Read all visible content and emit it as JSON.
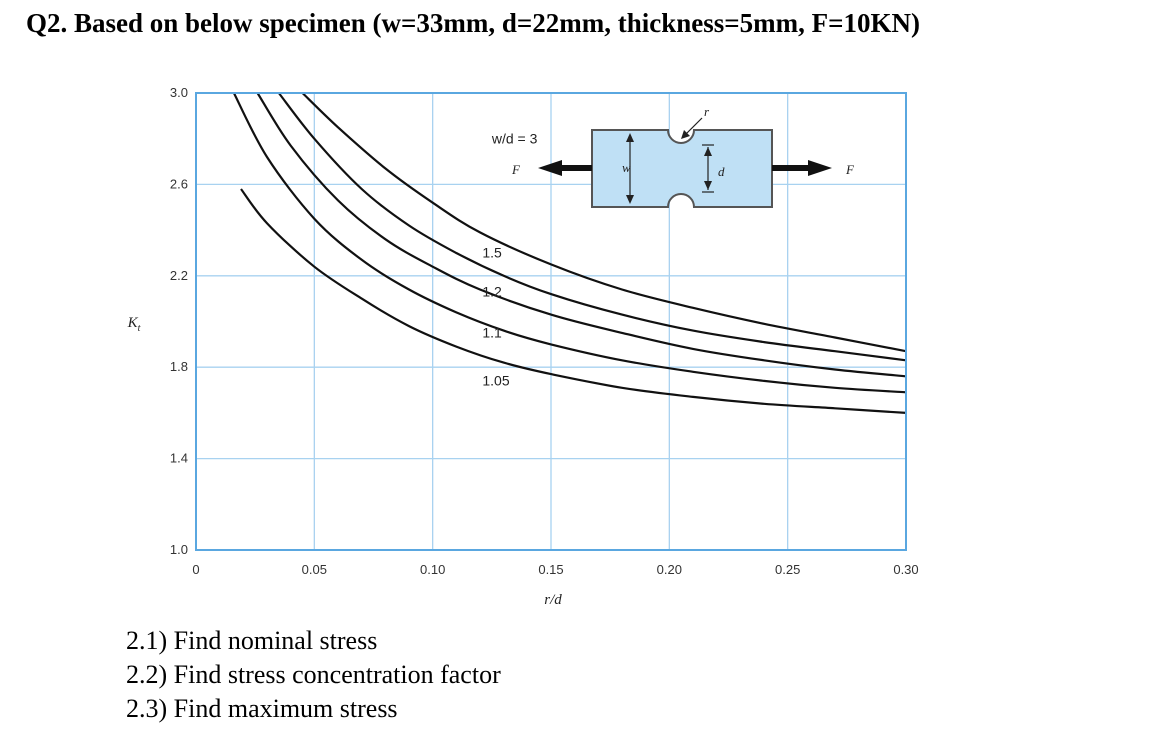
{
  "question": {
    "title": "Q2. Based on below specimen (w=33mm, d=22mm, thickness=5mm, F=10KN)",
    "tasks": [
      "2.1) Find nominal stress",
      "2.2) Find stress concentration factor",
      "2.3) Find maximum stress"
    ]
  },
  "diagram": {
    "force_left": "F",
    "force_right": "F",
    "width_label": "w",
    "depth_label": "d",
    "radius_label": "r",
    "fill_color": "#bfe0f5",
    "stroke_color": "#555555"
  },
  "chart_data": {
    "type": "line",
    "xlabel": "r/d",
    "ylabel": "Kt",
    "xlim": [
      0,
      0.3
    ],
    "ylim": [
      1.0,
      3.0
    ],
    "x_ticks": [
      "0",
      "0.05",
      "0.10",
      "0.15",
      "0.20",
      "0.25",
      "0.30"
    ],
    "y_ticks": [
      "1.0",
      "1.4",
      "1.8",
      "2.2",
      "2.6",
      "3.0"
    ],
    "grid": true,
    "grid_color": "#a8d2f0",
    "frame_color": "#5aa7e0",
    "line_color": "#111111",
    "series": [
      {
        "name": "w/d = 3",
        "label_x": 0.125,
        "label_y": 2.78,
        "points": [
          [
            0.045,
            3.0
          ],
          [
            0.06,
            2.85
          ],
          [
            0.08,
            2.67
          ],
          [
            0.1,
            2.52
          ],
          [
            0.12,
            2.39
          ],
          [
            0.15,
            2.25
          ],
          [
            0.18,
            2.14
          ],
          [
            0.21,
            2.06
          ],
          [
            0.24,
            1.99
          ],
          [
            0.27,
            1.93
          ],
          [
            0.3,
            1.87
          ]
        ]
      },
      {
        "name": "1.5",
        "label_x": 0.121,
        "label_y": 2.28,
        "points": [
          [
            0.035,
            3.0
          ],
          [
            0.05,
            2.8
          ],
          [
            0.07,
            2.58
          ],
          [
            0.09,
            2.42
          ],
          [
            0.11,
            2.3
          ],
          [
            0.13,
            2.2
          ],
          [
            0.15,
            2.12
          ],
          [
            0.18,
            2.03
          ],
          [
            0.21,
            1.96
          ],
          [
            0.24,
            1.91
          ],
          [
            0.27,
            1.87
          ],
          [
            0.3,
            1.83
          ]
        ]
      },
      {
        "name": "1.2",
        "label_x": 0.121,
        "label_y": 2.11,
        "points": [
          [
            0.026,
            3.0
          ],
          [
            0.04,
            2.77
          ],
          [
            0.06,
            2.53
          ],
          [
            0.08,
            2.36
          ],
          [
            0.1,
            2.24
          ],
          [
            0.12,
            2.14
          ],
          [
            0.15,
            2.03
          ],
          [
            0.18,
            1.95
          ],
          [
            0.21,
            1.88
          ],
          [
            0.24,
            1.83
          ],
          [
            0.27,
            1.79
          ],
          [
            0.3,
            1.76
          ]
        ]
      },
      {
        "name": "1.1",
        "label_x": 0.121,
        "label_y": 1.93,
        "points": [
          [
            0.016,
            3.0
          ],
          [
            0.03,
            2.72
          ],
          [
            0.05,
            2.45
          ],
          [
            0.07,
            2.27
          ],
          [
            0.09,
            2.14
          ],
          [
            0.11,
            2.04
          ],
          [
            0.13,
            1.96
          ],
          [
            0.15,
            1.9
          ],
          [
            0.18,
            1.83
          ],
          [
            0.21,
            1.78
          ],
          [
            0.24,
            1.74
          ],
          [
            0.27,
            1.71
          ],
          [
            0.3,
            1.69
          ]
        ]
      },
      {
        "name": "1.05",
        "label_x": 0.121,
        "label_y": 1.72,
        "points": [
          [
            0.019,
            2.58
          ],
          [
            0.03,
            2.43
          ],
          [
            0.05,
            2.24
          ],
          [
            0.07,
            2.1
          ],
          [
            0.09,
            1.98
          ],
          [
            0.11,
            1.89
          ],
          [
            0.13,
            1.82
          ],
          [
            0.15,
            1.77
          ],
          [
            0.18,
            1.71
          ],
          [
            0.21,
            1.67
          ],
          [
            0.24,
            1.64
          ],
          [
            0.27,
            1.62
          ],
          [
            0.3,
            1.6
          ]
        ]
      }
    ]
  }
}
